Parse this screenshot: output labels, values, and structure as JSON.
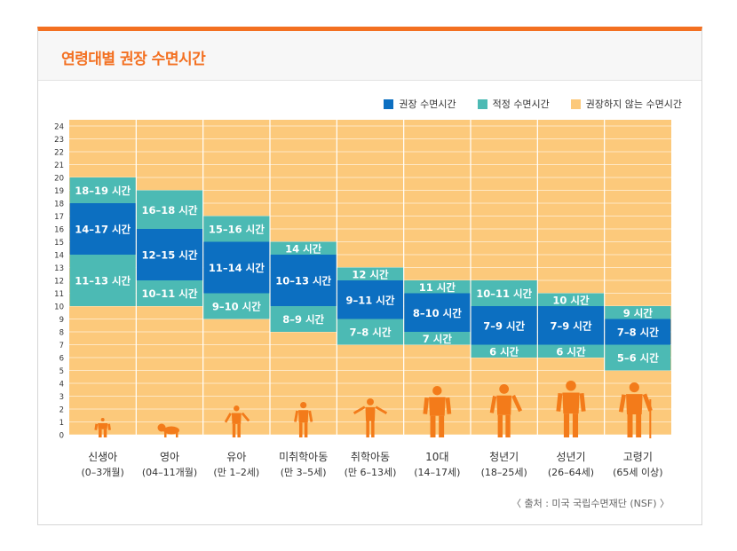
{
  "title": "연령대별 권장 수면시간",
  "source": "〈 출처 : 미국 국립수면재단 (NSF) 〉",
  "colors": {
    "recommended": "#0c6fc1",
    "appropriate": "#4cbab4",
    "not_recommended": "#fcc97b",
    "accent": "#f37021",
    "silhouette": "#f37b1a"
  },
  "legend": [
    {
      "label": "권장 수면시간",
      "key": "recommended"
    },
    {
      "label": "적정 수면시간",
      "key": "appropriate"
    },
    {
      "label": "권장하지 않는 수면시간",
      "key": "not_recommended"
    }
  ],
  "chart_data": {
    "type": "bar",
    "ylim": [
      0,
      24
    ],
    "y_ticks": [
      0,
      1,
      2,
      3,
      4,
      5,
      6,
      7,
      8,
      9,
      10,
      11,
      12,
      13,
      14,
      15,
      16,
      17,
      18,
      19,
      20,
      21,
      22,
      23,
      24
    ],
    "grid": true,
    "legend_position": "top-right",
    "categories": [
      {
        "name": "신생아",
        "sub": "(0–3개월)",
        "icon": "infant-silhouette"
      },
      {
        "name": "영아",
        "sub": "(04–11개월)",
        "icon": "crawling-baby-silhouette"
      },
      {
        "name": "유아",
        "sub": "(만 1–2세)",
        "icon": "toddler-silhouette"
      },
      {
        "name": "미취학아동",
        "sub": "(만 3–5세)",
        "icon": "preschooler-silhouette"
      },
      {
        "name": "취학아동",
        "sub": "(만 6–13세)",
        "icon": "child-silhouette"
      },
      {
        "name": "10대",
        "sub": "(14–17세)",
        "icon": "teen-silhouette"
      },
      {
        "name": "청년기",
        "sub": "(18–25세)",
        "icon": "young-adult-silhouette"
      },
      {
        "name": "성년기",
        "sub": "(26–64세)",
        "icon": "adult-silhouette"
      },
      {
        "name": "고령기",
        "sub": "(65세 이상)",
        "icon": "elderly-silhouette"
      }
    ],
    "segments": [
      [
        {
          "kind": "appropriate",
          "from": 18,
          "to": 20,
          "label": "18–19 시간"
        },
        {
          "kind": "recommended",
          "from": 14,
          "to": 18,
          "label": "14–17 시간"
        },
        {
          "kind": "appropriate",
          "from": 10,
          "to": 14,
          "label": "11–13 시간"
        }
      ],
      [
        {
          "kind": "appropriate",
          "from": 16,
          "to": 19,
          "label": "16–18 시간"
        },
        {
          "kind": "recommended",
          "from": 12,
          "to": 16,
          "label": "12–15 시간"
        },
        {
          "kind": "appropriate",
          "from": 10,
          "to": 12,
          "label": "10–11 시간"
        }
      ],
      [
        {
          "kind": "appropriate",
          "from": 15,
          "to": 17,
          "label": "15–16 시간"
        },
        {
          "kind": "recommended",
          "from": 11,
          "to": 15,
          "label": "11–14 시간"
        },
        {
          "kind": "appropriate",
          "from": 9,
          "to": 11,
          "label": "9–10 시간"
        }
      ],
      [
        {
          "kind": "appropriate",
          "from": 14,
          "to": 15,
          "label": "14 시간"
        },
        {
          "kind": "recommended",
          "from": 10,
          "to": 14,
          "label": "10–13 시간"
        },
        {
          "kind": "appropriate",
          "from": 8,
          "to": 10,
          "label": "8–9 시간"
        }
      ],
      [
        {
          "kind": "appropriate",
          "from": 12,
          "to": 13,
          "label": "12 시간"
        },
        {
          "kind": "recommended",
          "from": 9,
          "to": 12,
          "label": "9–11 시간"
        },
        {
          "kind": "appropriate",
          "from": 7,
          "to": 9,
          "label": "7–8 시간"
        }
      ],
      [
        {
          "kind": "appropriate",
          "from": 11,
          "to": 12,
          "label": "11 시간"
        },
        {
          "kind": "recommended",
          "from": 8,
          "to": 11,
          "label": "8–10 시간"
        },
        {
          "kind": "appropriate",
          "from": 7,
          "to": 8,
          "label": "7 시간"
        }
      ],
      [
        {
          "kind": "appropriate",
          "from": 10,
          "to": 12,
          "label": "10–11 시간"
        },
        {
          "kind": "recommended",
          "from": 7,
          "to": 10,
          "label": "7–9 시간"
        },
        {
          "kind": "appropriate",
          "from": 6,
          "to": 7,
          "label": "6 시간"
        }
      ],
      [
        {
          "kind": "appropriate",
          "from": 10,
          "to": 11,
          "label": "10 시간"
        },
        {
          "kind": "recommended",
          "from": 7,
          "to": 10,
          "label": "7–9 시간"
        },
        {
          "kind": "appropriate",
          "from": 6,
          "to": 7,
          "label": "6 시간"
        }
      ],
      [
        {
          "kind": "appropriate",
          "from": 9,
          "to": 10,
          "label": "9 시간"
        },
        {
          "kind": "recommended",
          "from": 7,
          "to": 9,
          "label": "7–8 시간"
        },
        {
          "kind": "appropriate",
          "from": 5,
          "to": 7,
          "label": "5–6 시간"
        }
      ]
    ]
  }
}
